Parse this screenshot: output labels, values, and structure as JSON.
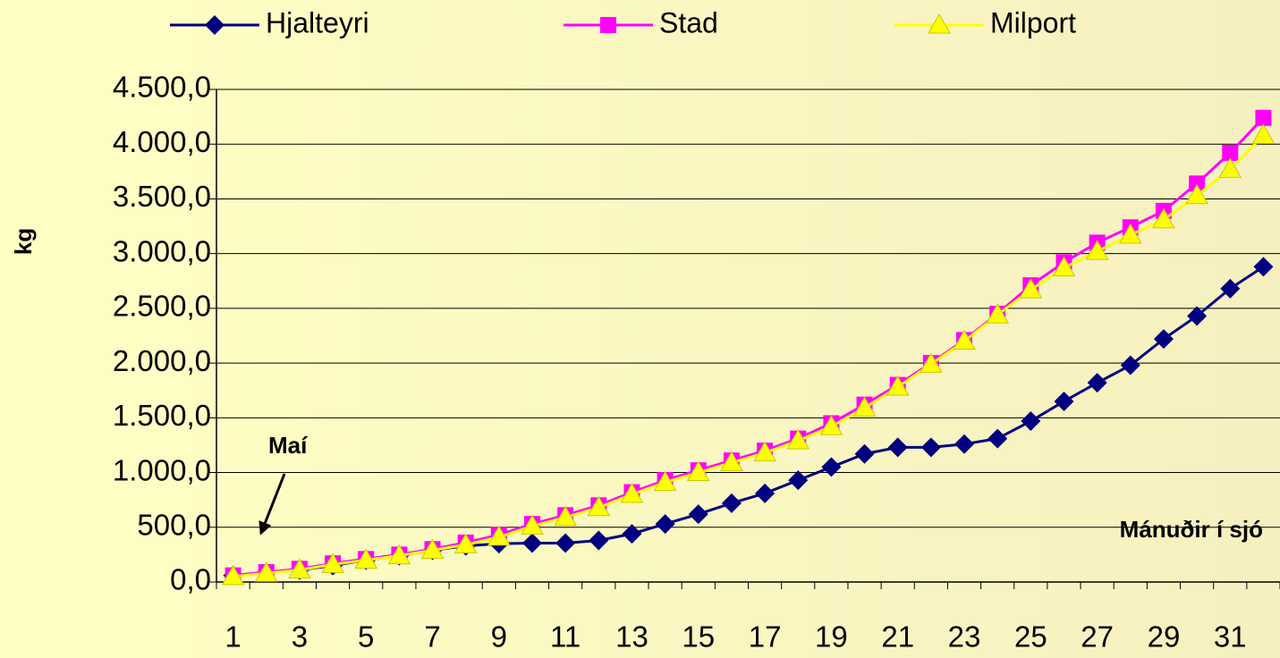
{
  "chart_data": {
    "type": "line",
    "categories": [
      "1",
      null,
      "3",
      null,
      "5",
      null,
      "7",
      null,
      "9",
      null,
      "11",
      null,
      "13",
      null,
      "15",
      null,
      "17",
      null,
      "19",
      null,
      "21",
      null,
      "23",
      null,
      "25",
      null,
      "27",
      null,
      "29",
      null,
      "31",
      null
    ],
    "series": [
      {
        "name": "Hjalteyri",
        "color": "#000080",
        "marker": "diamond",
        "values": [
          60,
          85,
          110,
          150,
          200,
          240,
          290,
          330,
          350,
          355,
          355,
          380,
          440,
          530,
          620,
          720,
          810,
          930,
          1050,
          1170,
          1230,
          1230,
          1260,
          1310,
          1470,
          1650,
          1820,
          1980,
          2220,
          2430,
          2680,
          2880
        ]
      },
      {
        "name": "Stad",
        "color": "#FF00FF",
        "marker": "square",
        "values": [
          60,
          90,
          120,
          170,
          210,
          250,
          300,
          360,
          430,
          530,
          610,
          700,
          820,
          930,
          1020,
          1110,
          1200,
          1310,
          1450,
          1620,
          1800,
          2000,
          2210,
          2450,
          2710,
          2920,
          3100,
          3240,
          3390,
          3640,
          3920,
          4240
        ]
      },
      {
        "name": "Milport",
        "color": "#FFFF00",
        "marker": "triangle",
        "values": [
          50,
          80,
          110,
          160,
          200,
          240,
          290,
          340,
          410,
          510,
          590,
          680,
          800,
          910,
          1000,
          1090,
          1180,
          1290,
          1420,
          1590,
          1780,
          1990,
          2200,
          2440,
          2670,
          2870,
          3020,
          3170,
          3310,
          3530,
          3770,
          4080
        ]
      }
    ],
    "ylabel": "kg",
    "xlabel": "Mánuðir í sjó",
    "annotation": "Maí",
    "ylim": [
      0,
      4500
    ],
    "yticks": [
      {
        "value": 0,
        "label": "0,0"
      },
      {
        "value": 500,
        "label": "500,0"
      },
      {
        "value": 1000,
        "label": "1.000,0"
      },
      {
        "value": 1500,
        "label": "1.500,0"
      },
      {
        "value": 2000,
        "label": "2.000,0"
      },
      {
        "value": 2500,
        "label": "2.500,0"
      },
      {
        "value": 3000,
        "label": "3.000,0"
      },
      {
        "value": 3500,
        "label": "3.500,0"
      },
      {
        "value": 4000,
        "label": "4.000,0"
      },
      {
        "value": 4500,
        "label": "4.500,0"
      }
    ],
    "grid": true,
    "legend": "top"
  }
}
